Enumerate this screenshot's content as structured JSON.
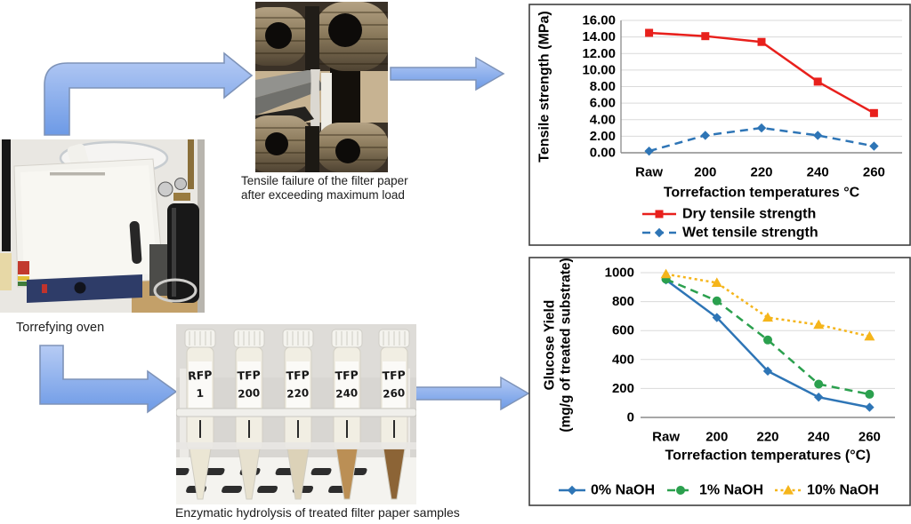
{
  "figure": {
    "oven_caption": "Torrefying oven",
    "tensile_caption": "Tensile failure of the filter paper\nafter exceeding maximum load",
    "tubes_caption": "Enzymatic hydrolysis of treated filter paper samples",
    "tube_labels": [
      "RFP 1",
      "TFP 200",
      "TFP 220",
      "TFP 240",
      "TFP 260"
    ],
    "arrow_colors": {
      "fill_light": "#b6cbf4",
      "fill_dark": "#6d9ae6",
      "stroke": "#7e93b8"
    }
  },
  "chart_data": [
    {
      "type": "line",
      "categories": [
        "Raw",
        "200",
        "220",
        "240",
        "260"
      ],
      "series": [
        {
          "name": "Dry tensile strength",
          "color": "#e8201c",
          "style": "solid",
          "marker": "square",
          "values": [
            14.5,
            14.1,
            13.4,
            8.6,
            4.8
          ]
        },
        {
          "name": "Wet tensile strength",
          "color": "#2e75b6",
          "style": "dashed",
          "marker": "diamond",
          "values": [
            0.2,
            2.1,
            3.0,
            2.1,
            0.8
          ]
        }
      ],
      "title": "",
      "xlabel": "Torrefaction temperatures °C",
      "ylabel": "Tensile strength (MPa)",
      "ylim": [
        0,
        16
      ],
      "ytick_step": 2,
      "ytick_decimals": 2,
      "grid": true,
      "legend_position": "bottom-stacked"
    },
    {
      "type": "line",
      "categories": [
        "Raw",
        "200",
        "220",
        "240",
        "260"
      ],
      "series": [
        {
          "name": "0% NaOH",
          "color": "#2e75b6",
          "style": "solid",
          "marker": "diamond",
          "values": [
            950,
            690,
            320,
            140,
            70
          ]
        },
        {
          "name": "1% NaOH",
          "color": "#2ba04e",
          "style": "dashed",
          "marker": "circle",
          "values": [
            955,
            805,
            535,
            230,
            160
          ]
        },
        {
          "name": "10% NaOH",
          "color": "#f5b51b",
          "style": "dotted",
          "marker": "triangle",
          "values": [
            990,
            930,
            690,
            640,
            560
          ]
        }
      ],
      "title": "",
      "xlabel": "Torrefaction temperatures (°C)",
      "ylabel": "Glucose Yield\n(mg/g of treated substrate)",
      "ylim": [
        0,
        1000
      ],
      "ytick_step": 200,
      "ytick_decimals": 0,
      "grid": true,
      "legend_position": "bottom-row"
    }
  ]
}
